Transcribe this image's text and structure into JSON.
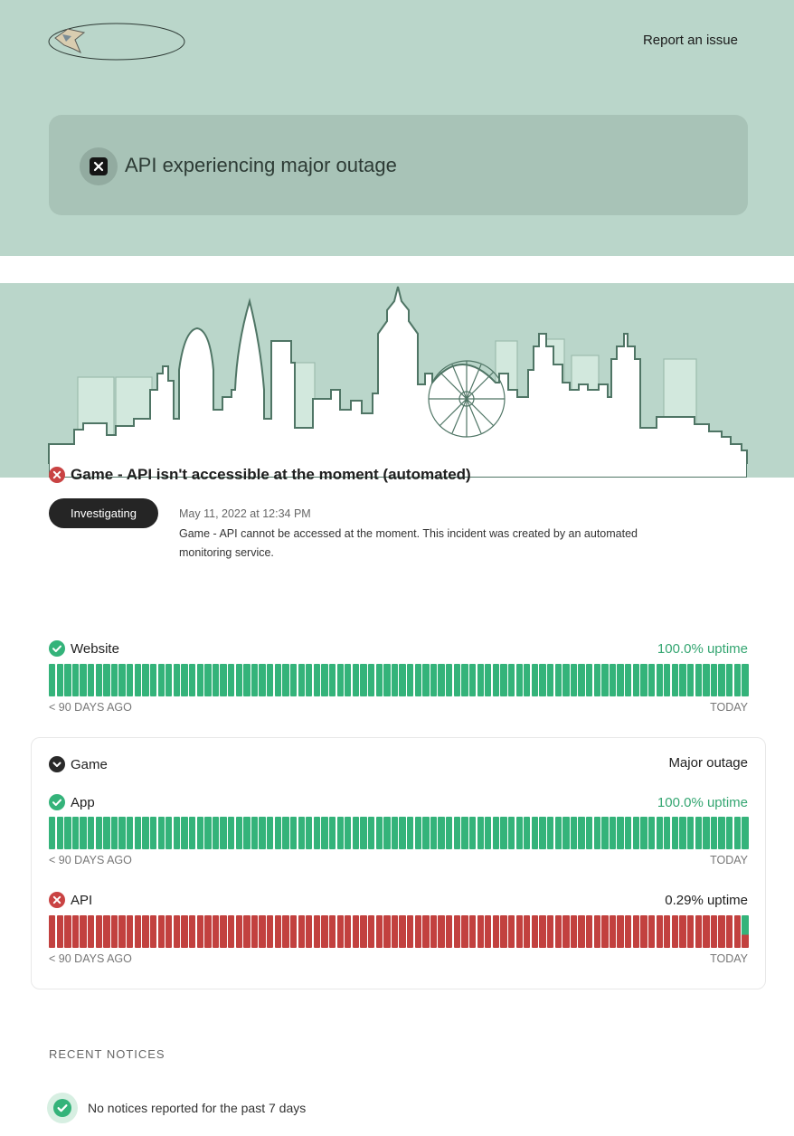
{
  "header": {
    "report_link": "Report an issue",
    "background": "#bad6ca"
  },
  "status_banner": {
    "title": "API experiencing major outage",
    "icon": "x-square-icon"
  },
  "incident": {
    "title": "Game - API isn't accessible at the moment (automated)",
    "status_badge": "Investigating",
    "timestamp": "May 11, 2022 at 12:34 PM",
    "body": "Game - API cannot be accessed at the moment. This incident was created by an automated monitoring service.",
    "icon": "x-circle-icon"
  },
  "components": {
    "website": {
      "name": "Website",
      "uptime": "100.0% uptime",
      "status": "operational",
      "axis_left": "90 DAYS AGO",
      "axis_right": "TODAY"
    },
    "game_group": {
      "name": "Game",
      "status_text": "Major outage",
      "icon": "chevron-down-icon",
      "app": {
        "name": "App",
        "uptime": "100.0% uptime",
        "status": "operational",
        "axis_left": "90 DAYS AGO",
        "axis_right": "TODAY"
      },
      "api": {
        "name": "API",
        "uptime": "0.29% uptime",
        "status": "major-outage",
        "axis_left": "90 DAYS AGO",
        "axis_right": "TODAY"
      }
    }
  },
  "notices": {
    "heading": "RECENT NOTICES",
    "empty_text": "No notices reported for the past 7 days"
  },
  "colors": {
    "up": "#34b37a",
    "down": "#c2413f",
    "accent_text": "#35a672"
  }
}
